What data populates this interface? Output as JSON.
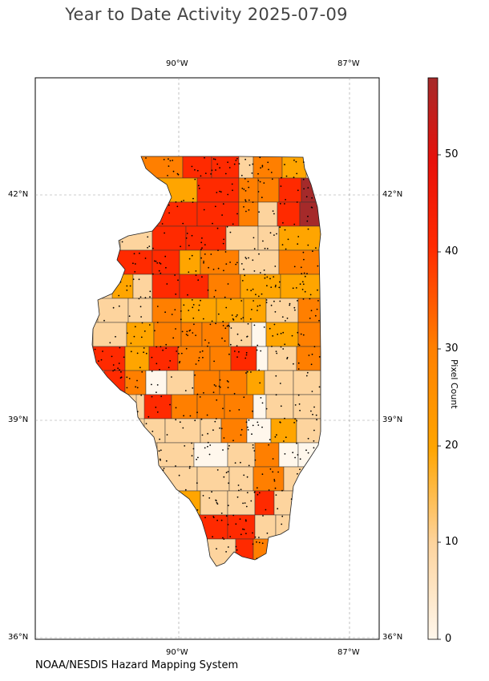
{
  "title": "Year to Date Activity 2025-07-09",
  "credit": "NOAA/NESDIS Hazard Mapping System",
  "map": {
    "region": "Illinois counties",
    "longitude_ticks": [
      "90°W",
      "87°W"
    ],
    "latitude_ticks": [
      "42°N",
      "39°N",
      "36°N"
    ],
    "gridlines": true,
    "overlay": "fire detection points (black dots)"
  },
  "colorbar": {
    "label": "Pixel Count",
    "ticks": [
      "0",
      "10",
      "20",
      "30",
      "40",
      "50"
    ],
    "range": [
      0,
      58
    ],
    "colors": {
      "low": "#fff7ec",
      "light": "#fdd49e",
      "mid": "#ffa500",
      "orange": "#ff7f00",
      "red": "#ff2a00",
      "high": "#a52a2a"
    }
  }
}
